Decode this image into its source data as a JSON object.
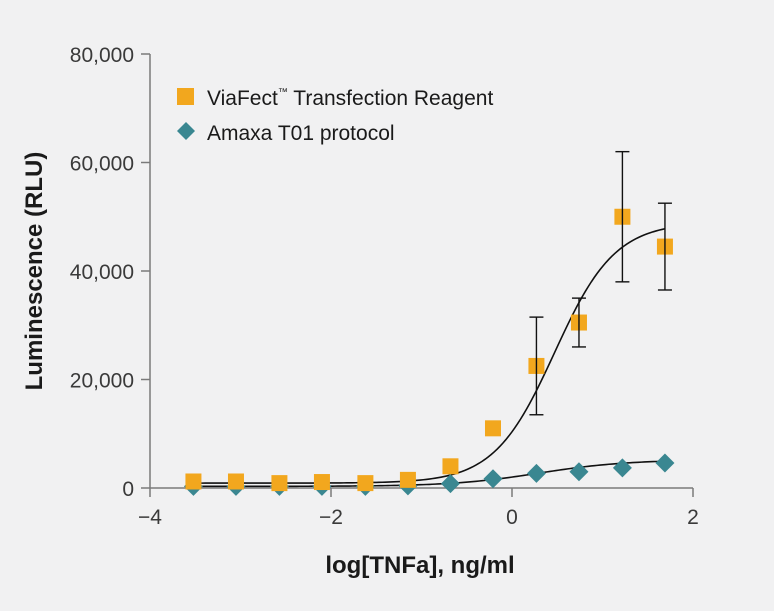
{
  "chart_data": {
    "type": "scatter",
    "xlabel": "log[TNFa], ng/ml",
    "ylabel": "Luminescence (RLU)",
    "xlim": [
      -4,
      2
    ],
    "ylim": [
      0,
      80000
    ],
    "x_ticks": [
      -4,
      -2,
      0,
      2
    ],
    "x_tick_labels": [
      "−4",
      "−2",
      "0",
      "2"
    ],
    "y_ticks": [
      0,
      20000,
      40000,
      60000,
      80000
    ],
    "y_tick_labels": [
      "0",
      "20,000",
      "40,000",
      "60,000",
      "80,000"
    ],
    "legend_position": "top-left",
    "series": [
      {
        "name": "ViaFect™ Transfection Reagent",
        "legend_name": "ViaFect",
        "legend_tm": "™",
        "legend_rest": " Transfection Reagent",
        "marker": "square",
        "color": "#f2a71e",
        "x": [
          -3.52,
          -3.05,
          -2.57,
          -2.1,
          -1.62,
          -1.15,
          -0.68,
          -0.21,
          0.27,
          0.74,
          1.22,
          1.69
        ],
        "y": [
          1200,
          1200,
          900,
          1100,
          900,
          1500,
          4000,
          11000,
          22500,
          30500,
          50000,
          44500
        ],
        "error": [
          0,
          0,
          0,
          0,
          0,
          0,
          0,
          0,
          9000,
          4500,
          12000,
          8000
        ],
        "fit": {
          "bottom": 900,
          "top": 49000,
          "ec50_log": 0.47,
          "hill": 1.3,
          "x_start": -3.52,
          "x_end": 1.69
        }
      },
      {
        "name": "Amaxa T01 protocol",
        "marker": "diamond",
        "color": "#3a8791",
        "x": [
          -3.52,
          -3.05,
          -2.57,
          -2.1,
          -1.62,
          -1.15,
          -0.68,
          -0.21,
          0.27,
          0.74,
          1.22,
          1.69
        ],
        "y": [
          300,
          300,
          300,
          300,
          300,
          400,
          800,
          1700,
          2700,
          3000,
          3700,
          4600
        ],
        "error": [
          0,
          0,
          0,
          0,
          0,
          0,
          0,
          0,
          0,
          0,
          0,
          0
        ],
        "fit": {
          "bottom": 300,
          "top": 5200,
          "ec50_log": 0.3,
          "hill": 0.9,
          "x_start": -3.52,
          "x_end": 1.69
        }
      }
    ]
  }
}
